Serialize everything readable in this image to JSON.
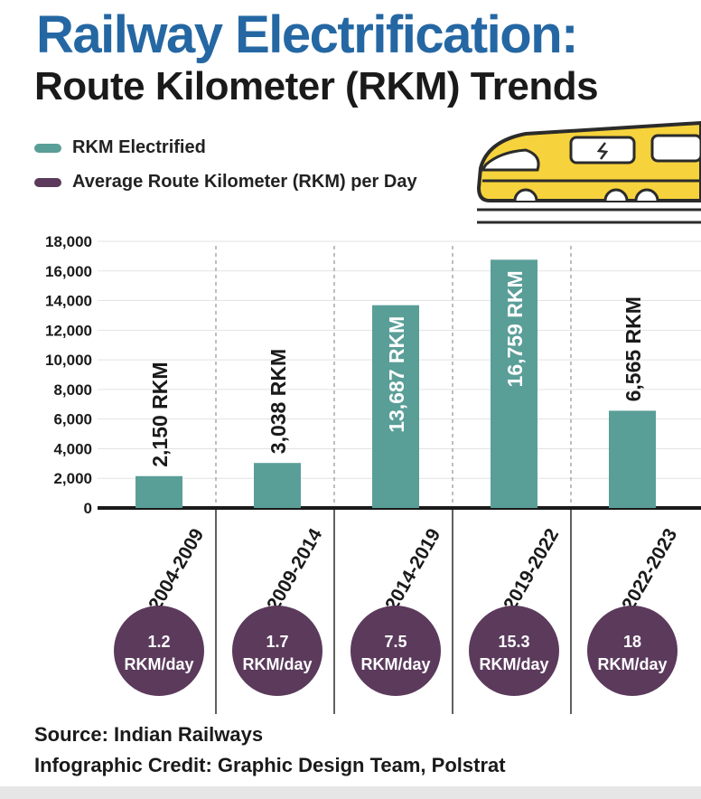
{
  "header": {
    "title_line1": "Railway Electrification:",
    "title_line2": "Route Kilometer (RKM) Trends"
  },
  "legend": [
    {
      "label": "RKM Electrified",
      "color": "#5a9e98"
    },
    {
      "label": "Average Route Kilometer (RKM) per Day",
      "color": "#5b3a5c"
    }
  ],
  "illustration": {
    "icon": "train-icon",
    "body_color": "#f6d23c",
    "outline_color": "#2b2b2b"
  },
  "chart_data": {
    "type": "bar",
    "categories": [
      "2004-2009",
      "2009-2014",
      "2014-2019",
      "2019-2022",
      "2022-2023"
    ],
    "series": [
      {
        "name": "RKM Electrified",
        "values": [
          2150,
          3038,
          13687,
          16759,
          6565
        ],
        "color": "#5a9e98"
      },
      {
        "name": "Average Route Kilometer (RKM) per Day",
        "values": [
          1.2,
          1.7,
          7.5,
          15.3,
          18
        ],
        "color": "#5b3a5c"
      }
    ],
    "bar_labels": [
      "2,150 RKM",
      "3,038 RKM",
      "13,687 RKM",
      "16,759 RKM",
      "6,565 RKM"
    ],
    "per_day_labels": [
      {
        "value": "1.2",
        "unit": "RKM/day"
      },
      {
        "value": "1.7",
        "unit": "RKM/day"
      },
      {
        "value": "7.5",
        "unit": "RKM/day"
      },
      {
        "value": "15.3",
        "unit": "RKM/day"
      },
      {
        "value": "18",
        "unit": "RKM/day"
      }
    ],
    "yticks": [
      0,
      2000,
      4000,
      6000,
      8000,
      10000,
      12000,
      14000,
      16000,
      18000
    ],
    "ytick_labels": [
      "0",
      "2,000",
      "4,000",
      "6,000",
      "8,000",
      "10,000",
      "12,000",
      "14,000",
      "16,000",
      "18,000"
    ],
    "ylim": [
      0,
      18000
    ],
    "grid": true,
    "legend_position": "top-left"
  },
  "footer": {
    "source": "Source: Indian Railways",
    "credit": "Infographic Credit: Graphic Design Team, Polstrat"
  }
}
